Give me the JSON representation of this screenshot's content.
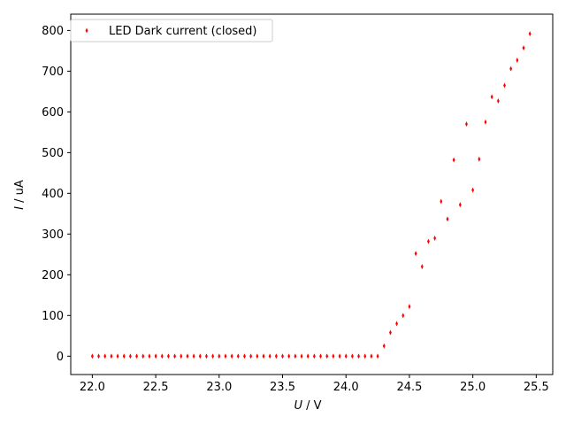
{
  "chart_data": {
    "type": "scatter",
    "xlabel": {
      "italic": "U",
      "rest": " / V"
    },
    "ylabel": {
      "italic": "I",
      "rest": " / uA"
    },
    "xlim": [
      21.83,
      25.63
    ],
    "ylim": [
      -45,
      840
    ],
    "xticks": [
      22.0,
      22.5,
      23.0,
      23.5,
      24.0,
      24.5,
      25.0,
      25.5
    ],
    "xtick_labels": [
      "22.0",
      "22.5",
      "23.0",
      "23.5",
      "24.0",
      "24.5",
      "25.0",
      "25.5"
    ],
    "yticks": [
      0,
      100,
      200,
      300,
      400,
      500,
      600,
      700,
      800
    ],
    "ytick_labels": [
      "0",
      "100",
      "200",
      "300",
      "400",
      "500",
      "600",
      "700",
      "800"
    ],
    "grid": false,
    "legend_position": "top-left",
    "series": [
      {
        "name": "LED Dark current (closed)",
        "color": "#ff0000",
        "marker": "thin-diamond",
        "x": [
          22.0,
          22.05,
          22.1,
          22.15,
          22.2,
          22.25,
          22.3,
          22.35,
          22.4,
          22.45,
          22.5,
          22.55,
          22.6,
          22.65,
          22.7,
          22.75,
          22.8,
          22.85,
          22.9,
          22.95,
          23.0,
          23.05,
          23.1,
          23.15,
          23.2,
          23.25,
          23.3,
          23.35,
          23.4,
          23.45,
          23.5,
          23.55,
          23.6,
          23.65,
          23.7,
          23.75,
          23.8,
          23.85,
          23.9,
          23.95,
          24.0,
          24.05,
          24.1,
          24.15,
          24.2,
          24.25,
          24.3,
          24.35,
          24.4,
          24.45,
          24.5,
          24.55,
          24.6,
          24.65,
          24.7,
          24.75,
          24.8,
          24.85,
          24.9,
          24.95,
          25.0,
          25.05,
          25.1,
          25.15,
          25.2,
          25.25,
          25.3,
          25.35,
          25.4,
          25.45
        ],
        "y": [
          0,
          0,
          0,
          0,
          0,
          0,
          0,
          0,
          0,
          0,
          0,
          0,
          0,
          0,
          0,
          0,
          0,
          0,
          0,
          0,
          0,
          0,
          0,
          0,
          0,
          0,
          0,
          0,
          0,
          0,
          0,
          0,
          0,
          0,
          0,
          0,
          0,
          0,
          0,
          0,
          0,
          0,
          0,
          0,
          0,
          0,
          25,
          58,
          80,
          100,
          122,
          252,
          220,
          282,
          290,
          380,
          337,
          482,
          372,
          570,
          408,
          484,
          575,
          637,
          627,
          665,
          706,
          727,
          757,
          792
        ]
      }
    ]
  }
}
